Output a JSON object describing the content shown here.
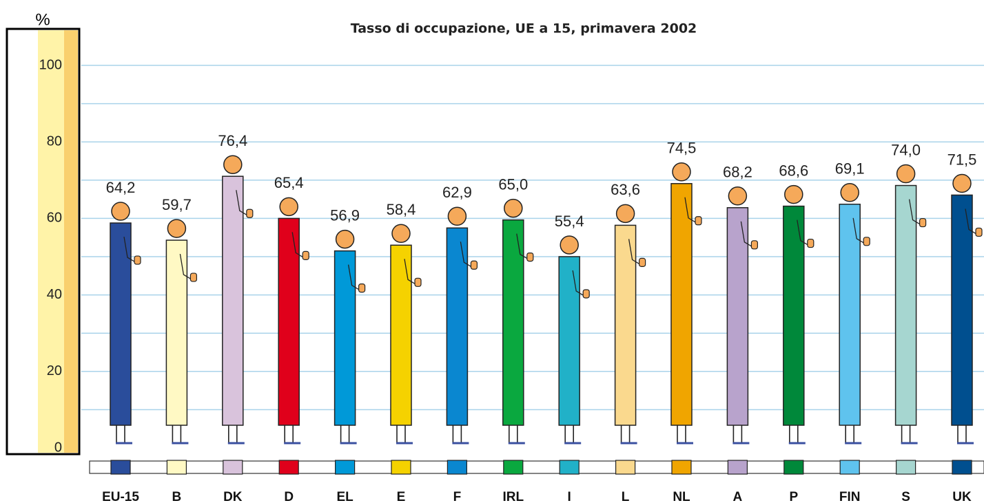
{
  "chart_data": {
    "type": "bar",
    "title": "Tasso di occupazione, UE a 15, primavera 2002",
    "y_label": "%",
    "categories": [
      "EU-15",
      "B",
      "DK",
      "D",
      "EL",
      "E",
      "F",
      "IRL",
      "I",
      "L",
      "NL",
      "A",
      "P",
      "FIN",
      "S",
      "UK"
    ],
    "values": [
      64.2,
      59.7,
      76.4,
      65.4,
      56.9,
      58.4,
      62.9,
      65.0,
      55.4,
      63.6,
      74.5,
      68.2,
      68.6,
      69.1,
      74.0,
      71.5
    ],
    "value_labels": [
      "64,2",
      "59,7",
      "76,4",
      "65,4",
      "56,9",
      "58,4",
      "62,9",
      "65,0",
      "55,4",
      "63,6",
      "74,5",
      "68,2",
      "68,6",
      "69,1",
      "74,0",
      "71,5"
    ],
    "colors": [
      "#2a4d9b",
      "#fff9c4",
      "#d9c3dc",
      "#e0001b",
      "#0099d8",
      "#f5d200",
      "#0a87d0",
      "#0aa83f",
      "#21b1c8",
      "#fad98e",
      "#f0a500",
      "#b8a3cc",
      "#00883a",
      "#5fc3ee",
      "#a6d6d0",
      "#004f8f"
    ],
    "ylim": [
      0,
      100
    ],
    "yticks": [
      0,
      20,
      40,
      60,
      80,
      100
    ],
    "minor_grid": [
      10,
      30,
      50,
      70,
      90
    ],
    "grid": true
  }
}
